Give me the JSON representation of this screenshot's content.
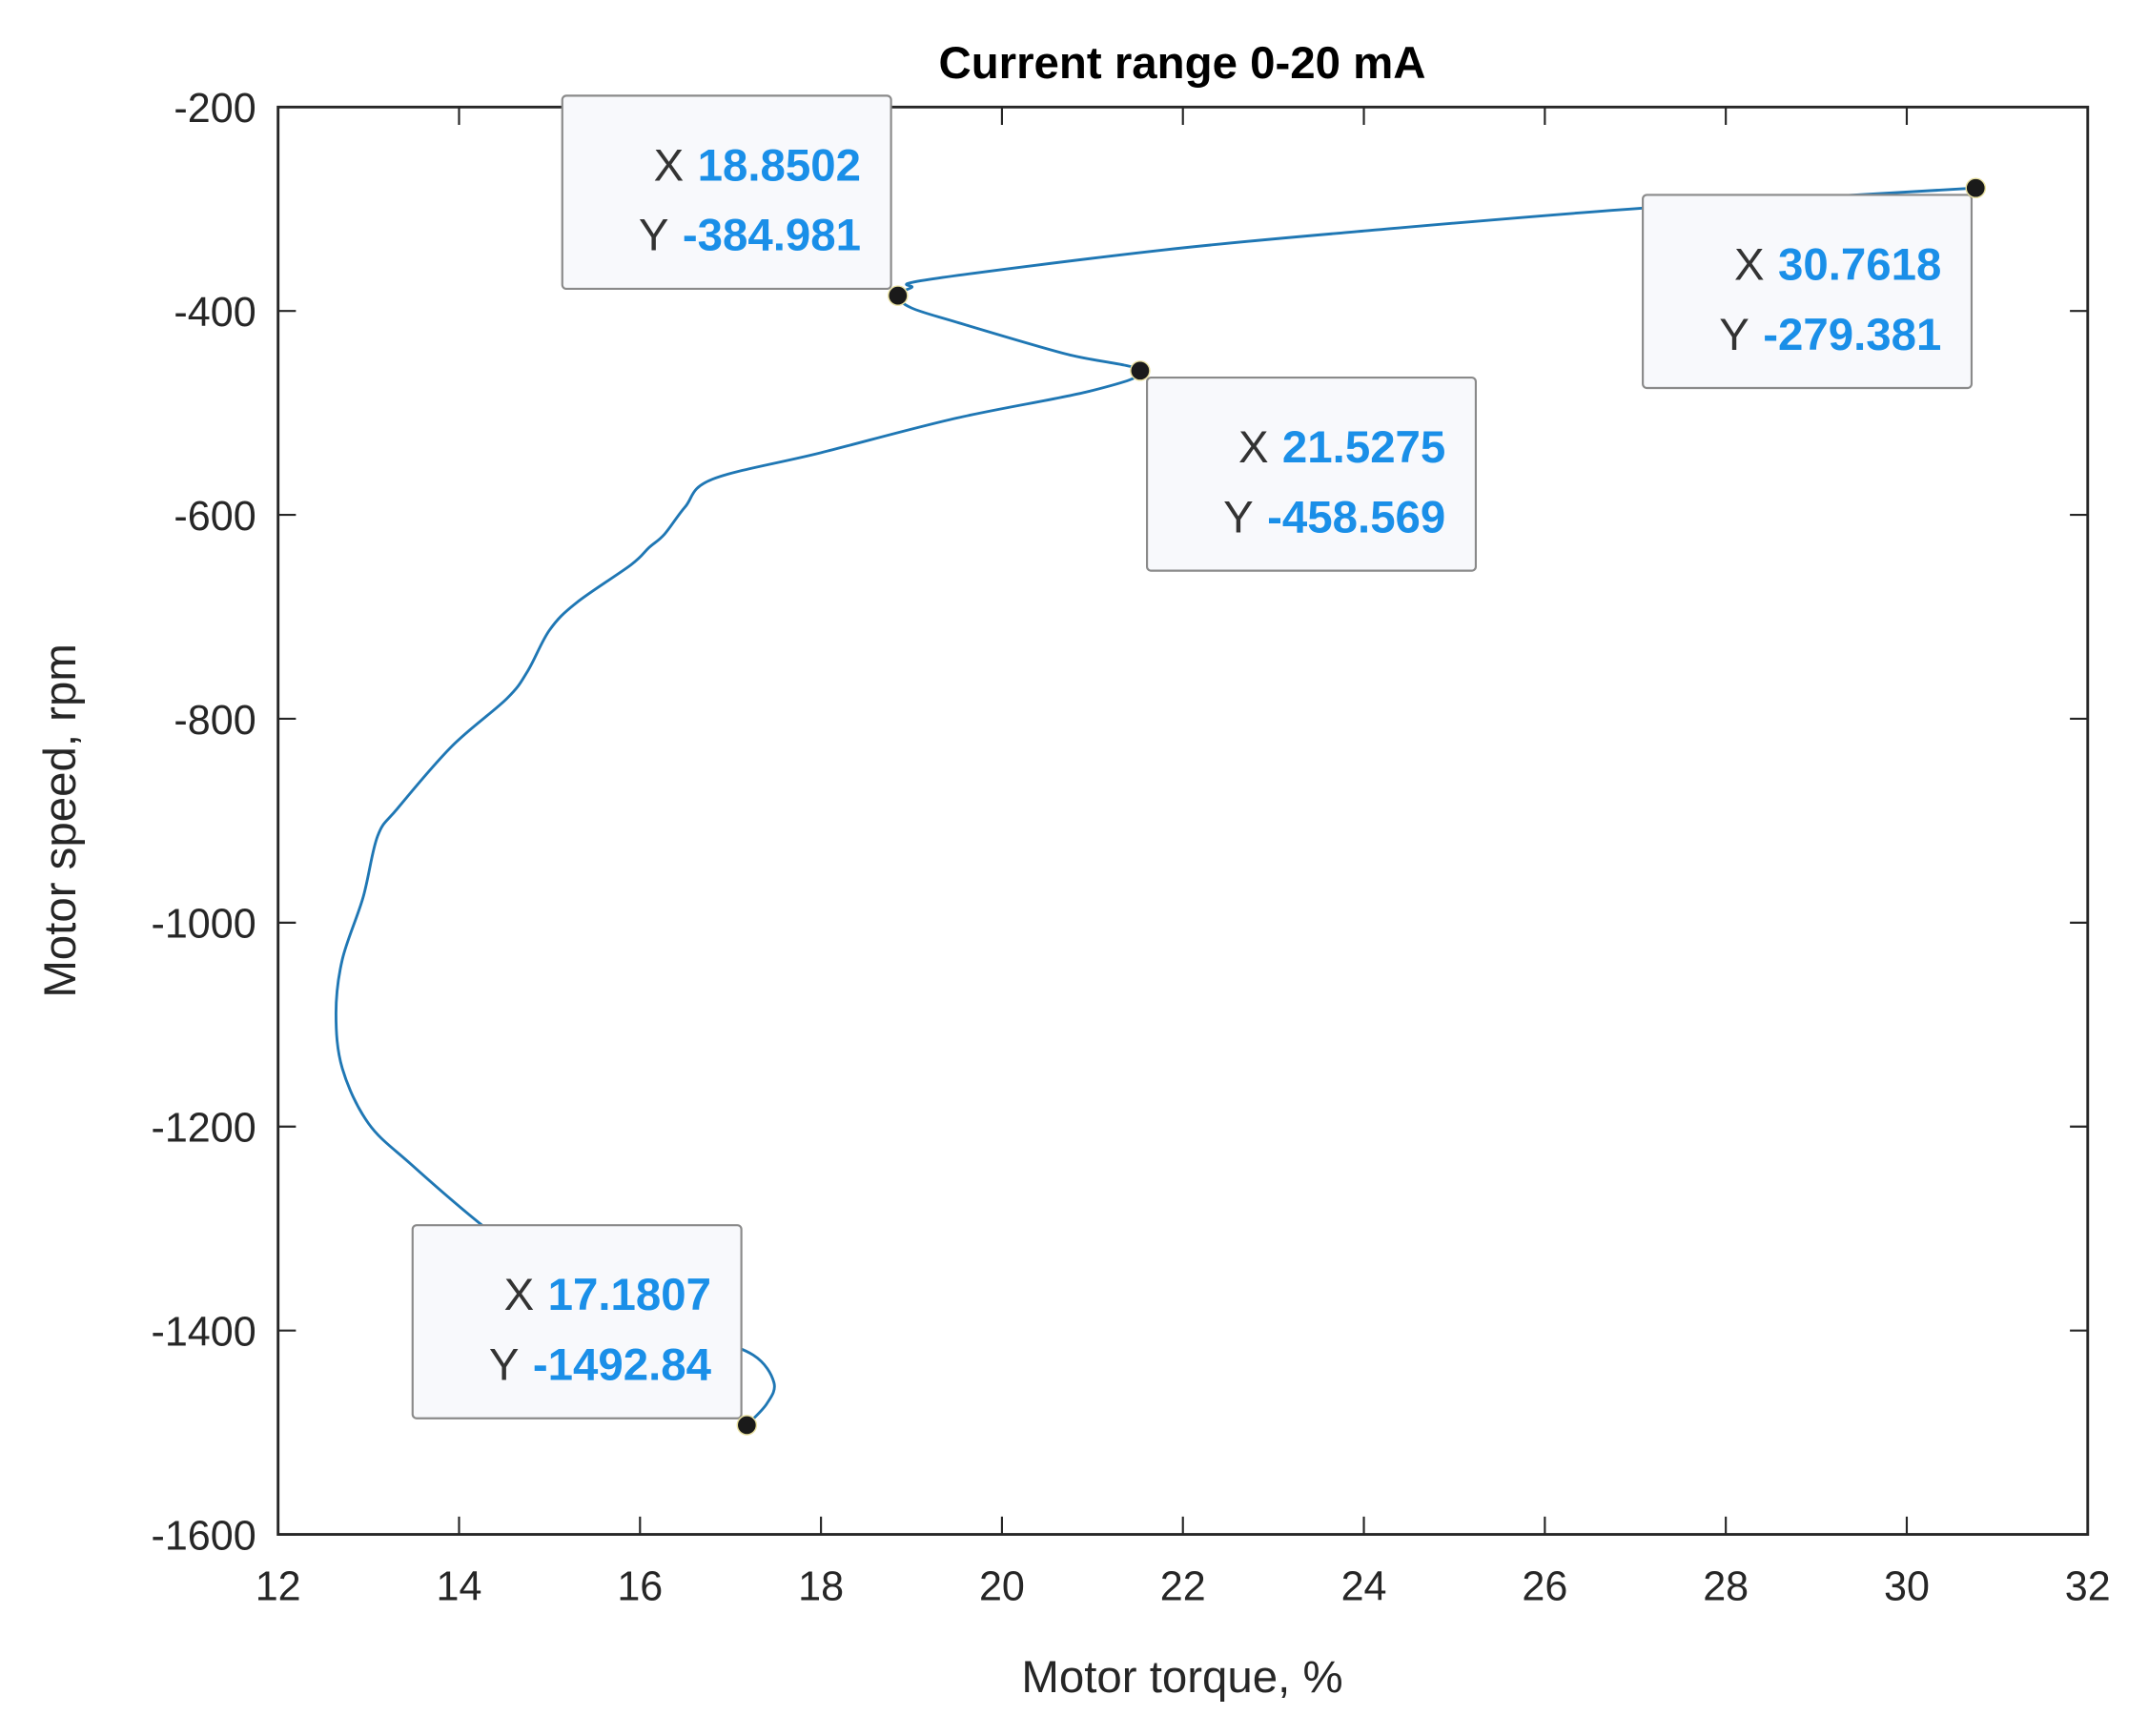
{
  "chart_data": {
    "type": "line",
    "title": "Current range 0-20 mA",
    "xlabel": "Motor torque, %",
    "ylabel": "Motor speed, rpm",
    "xlim": [
      12,
      32
    ],
    "ylim": [
      -1600,
      -200
    ],
    "xticks": [
      12,
      14,
      16,
      18,
      20,
      22,
      24,
      26,
      28,
      30,
      32
    ],
    "yticks": [
      -200,
      -400,
      -600,
      -800,
      -1000,
      -1200,
      -1400,
      -1600
    ],
    "grid": false,
    "line_color": "#1f77b4",
    "series": [
      {
        "x": [
          30.7618,
          27.1,
          24.07,
          21.8,
          19.2,
          19.0,
          18.8502,
          19.0,
          19.5,
          20.7,
          21.5275,
          21.0,
          19.5,
          18.0,
          16.8,
          16.5,
          16.27,
          16.1,
          15.9,
          15.3,
          15.0,
          14.76,
          14.53,
          13.92,
          13.32,
          13.1,
          12.94,
          12.71,
          12.64,
          12.71,
          13.0,
          13.47,
          14.23,
          14.98,
          15.74,
          16.65,
          17.25,
          17.48,
          17.4,
          17.1807
        ],
        "y": [
          -279.381,
          -299,
          -321,
          -340,
          -369,
          -377,
          -384.981,
          -397,
          -411,
          -442,
          -458.569,
          -478,
          -505,
          -539,
          -565,
          -592,
          -619,
          -632,
          -649,
          -686,
          -713,
          -753,
          -780,
          -827,
          -888,
          -915,
          -975,
          -1036,
          -1089,
          -1143,
          -1197,
          -1237,
          -1295,
          -1345,
          -1378,
          -1404,
          -1424,
          -1451,
          -1472,
          -1492.84
        ]
      }
    ],
    "datatips": [
      {
        "x_label": "X",
        "y_label": "Y",
        "x": "18.8502",
        "y": "-384.981"
      },
      {
        "x_label": "X",
        "y_label": "Y",
        "x": "30.7618",
        "y": "-279.381"
      },
      {
        "x_label": "X",
        "y_label": "Y",
        "x": "21.5275",
        "y": "-458.569"
      },
      {
        "x_label": "X",
        "y_label": "Y",
        "x": "17.1807",
        "y": "-1492.84"
      }
    ]
  }
}
